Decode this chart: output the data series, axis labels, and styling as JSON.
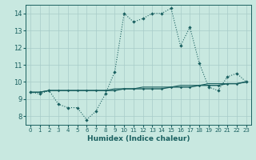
{
  "xlabel": "Humidex (Indice chaleur)",
  "background_color": "#c8e8e0",
  "grid_color": "#a8ccc8",
  "line_color": "#1a6060",
  "xlim": [
    -0.5,
    23.5
  ],
  "ylim": [
    7.5,
    14.5
  ],
  "xticks": [
    0,
    1,
    2,
    3,
    4,
    5,
    6,
    7,
    8,
    9,
    10,
    11,
    12,
    13,
    14,
    15,
    16,
    17,
    18,
    19,
    20,
    21,
    22,
    23
  ],
  "yticks": [
    8,
    9,
    10,
    11,
    12,
    13,
    14
  ],
  "line1_x": [
    0,
    1,
    2,
    3,
    4,
    5,
    6,
    7,
    8,
    9,
    10,
    11,
    12,
    13,
    14,
    15,
    16,
    17,
    18,
    19,
    20,
    21,
    22,
    23
  ],
  "line1_y": [
    9.4,
    9.3,
    9.5,
    8.7,
    8.5,
    8.5,
    7.8,
    8.3,
    9.3,
    10.6,
    14.0,
    13.5,
    13.7,
    14.0,
    14.0,
    14.3,
    12.1,
    13.2,
    11.1,
    9.7,
    9.5,
    10.3,
    10.5,
    10.0
  ],
  "line2_x": [
    0,
    1,
    2,
    3,
    4,
    5,
    6,
    7,
    8,
    9,
    10,
    11,
    12,
    13,
    14,
    15,
    16,
    17,
    18,
    19,
    20,
    21,
    22,
    23
  ],
  "line2_y": [
    9.4,
    9.4,
    9.5,
    9.5,
    9.5,
    9.5,
    9.5,
    9.5,
    9.5,
    9.5,
    9.6,
    9.6,
    9.6,
    9.6,
    9.6,
    9.7,
    9.7,
    9.7,
    9.8,
    9.8,
    9.8,
    9.9,
    9.9,
    10.0
  ],
  "line3_x": [
    0,
    1,
    2,
    3,
    4,
    5,
    6,
    7,
    8,
    9,
    10,
    11,
    12,
    13,
    14,
    15,
    16,
    17,
    18,
    19,
    20,
    21,
    22,
    23
  ],
  "line3_y": [
    9.4,
    9.4,
    9.5,
    9.5,
    9.5,
    9.5,
    9.5,
    9.5,
    9.5,
    9.6,
    9.6,
    9.6,
    9.7,
    9.7,
    9.7,
    9.7,
    9.8,
    9.8,
    9.8,
    9.9,
    9.9,
    9.9,
    9.9,
    10.0
  ]
}
